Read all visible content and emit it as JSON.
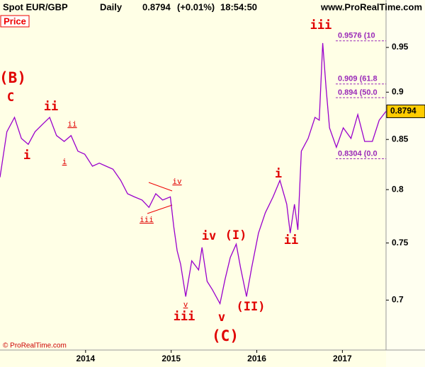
{
  "chart_data": {
    "type": "line",
    "title": "Spot EUR/GBP",
    "interval": "Daily",
    "last_value": 0.8794,
    "change": "(+0.01%)",
    "time": "18:54:50",
    "source": "www.ProRealTime.com",
    "panel_label": "Price",
    "copyright": "© ProRealTime.com",
    "log_scale": true,
    "color": "#9900cc",
    "x": [
      2013.0,
      2013.08,
      2013.17,
      2013.25,
      2013.33,
      2013.41,
      2013.5,
      2013.58,
      2013.66,
      2013.75,
      2013.83,
      2013.91,
      2013.99,
      2014.08,
      2014.16,
      2014.24,
      2014.32,
      2014.41,
      2014.49,
      2014.57,
      2014.66,
      2014.74,
      2014.82,
      2014.9,
      2014.99,
      2015.03,
      2015.07,
      2015.11,
      2015.17,
      2015.24,
      2015.32,
      2015.36,
      2015.42,
      2015.48,
      2015.57,
      2015.63,
      2015.69,
      2015.76,
      2015.81,
      2015.88,
      2015.94,
      2016.02,
      2016.1,
      2016.19,
      2016.27,
      2016.35,
      2016.39,
      2016.44,
      2016.48,
      2016.52,
      2016.6,
      2016.68,
      2016.73,
      2016.77,
      2016.81,
      2016.85,
      2016.93,
      2017.01,
      2017.1,
      2017.18,
      2017.26,
      2017.35,
      2017.43,
      2017.51
    ],
    "values": [
      0.812,
      0.858,
      0.873,
      0.851,
      0.845,
      0.858,
      0.866,
      0.873,
      0.854,
      0.848,
      0.854,
      0.838,
      0.835,
      0.823,
      0.826,
      0.823,
      0.82,
      0.809,
      0.796,
      0.793,
      0.79,
      0.783,
      0.796,
      0.79,
      0.793,
      0.765,
      0.743,
      0.731,
      0.703,
      0.734,
      0.726,
      0.746,
      0.716,
      0.709,
      0.697,
      0.718,
      0.737,
      0.749,
      0.728,
      0.703,
      0.728,
      0.759,
      0.778,
      0.793,
      0.809,
      0.786,
      0.759,
      0.786,
      0.762,
      0.838,
      0.851,
      0.873,
      0.87,
      0.955,
      0.904,
      0.862,
      0.842,
      0.862,
      0.851,
      0.876,
      0.848,
      0.848,
      0.87,
      0.8794
    ],
    "xlim": [
      2013.0,
      2017.51
    ],
    "ylim": [
      0.659,
      0.989
    ],
    "xticks": [
      2014,
      2015,
      2016,
      2017
    ],
    "yticks": [
      0.7,
      0.75,
      0.8,
      0.85,
      0.9,
      0.95
    ],
    "fib_levels": [
      {
        "value": 0.9576,
        "label": "0.9576 (10"
      },
      {
        "value": 0.909,
        "label": "0.909 (61.8"
      },
      {
        "value": 0.894,
        "label": "0.894 (50.0"
      },
      {
        "value": 0.8304,
        "label": "0.8304 (0.0"
      }
    ],
    "annotations": [
      "(B)",
      "C",
      "i",
      "ii",
      "ii",
      "i",
      "iv",
      "iii",
      "iv",
      "(I)",
      "v",
      "iii",
      "v",
      "(II)",
      "(C)",
      "i",
      "ii",
      "iii"
    ]
  }
}
